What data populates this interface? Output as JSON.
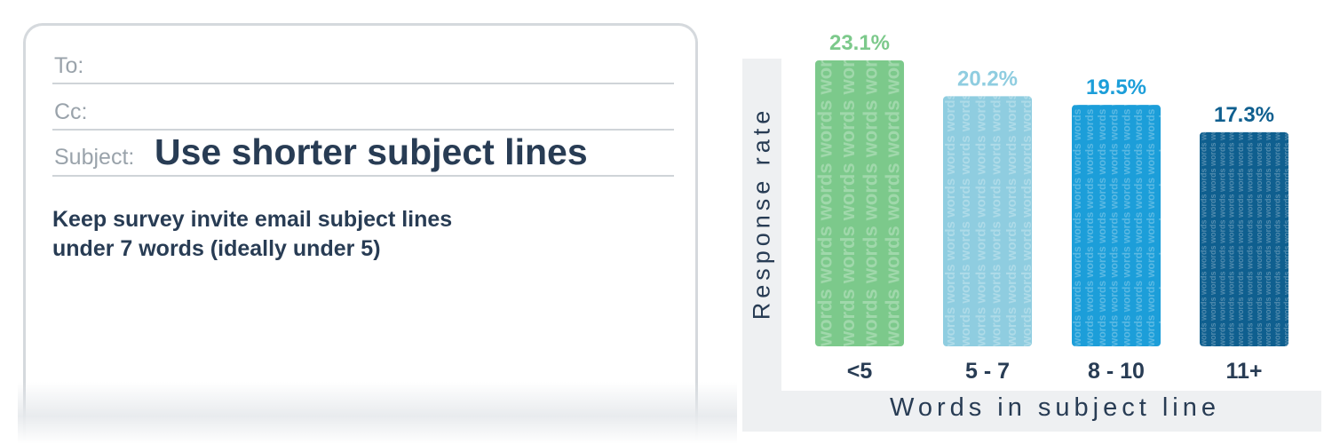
{
  "email": {
    "to_label": "To:",
    "cc_label": "Cc:",
    "subject_label": "Subject:",
    "subject_value": "Use shorter subject lines",
    "body_line1": "Keep survey invite email subject lines",
    "body_line2": "under 7 words (ideally under 5)"
  },
  "chart_data": {
    "type": "bar",
    "categories": [
      "<5",
      "5 - 7",
      "8 - 10",
      "11+"
    ],
    "values": [
      23.1,
      20.2,
      19.5,
      17.3
    ],
    "value_labels": [
      "23.1%",
      "20.2%",
      "19.5%",
      "17.3%"
    ],
    "pattern_word": "words",
    "colors": [
      "#7cc98b",
      "#8fcde0",
      "#1c9ed9",
      "#0f5f8f"
    ],
    "label_colors": [
      "#7cc98b",
      "#8fcde0",
      "#1c9ed9",
      "#0f5f8f"
    ],
    "xlabel": "Words in subject line",
    "ylabel": "Response rate",
    "ylim": [
      0,
      23.1
    ],
    "grid": false,
    "legend": "none"
  }
}
